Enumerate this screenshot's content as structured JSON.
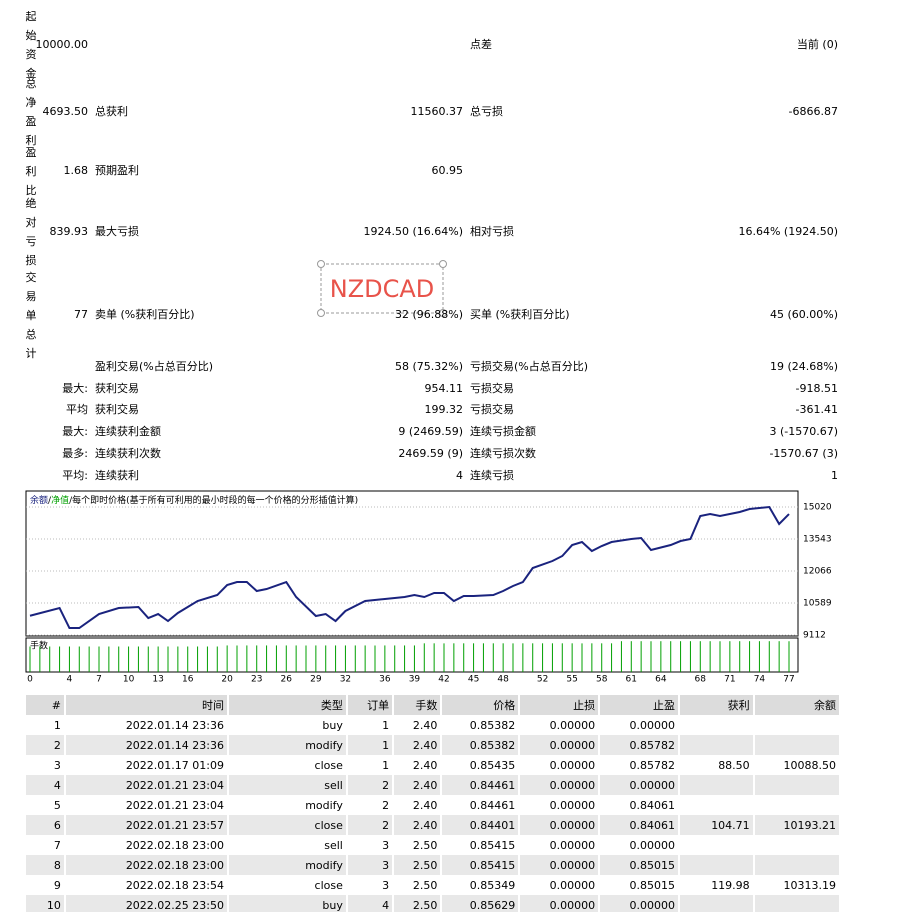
{
  "summary": {
    "rows": [
      {
        "head": "起始资金",
        "v1": "10000.00",
        "l3": "点差",
        "v3": "当前 (0)"
      },
      {
        "head": "总净盈利",
        "v1": "4693.50",
        "l2": "总获利",
        "v2": "11560.37",
        "l3": "总亏损",
        "v3": "-6866.87"
      },
      {
        "head": "盈利比",
        "v1": "1.68",
        "l2": "预期盈利",
        "v2": "60.95"
      },
      {
        "head": "绝对亏损",
        "v1": "839.93",
        "l2": "最大亏损",
        "v2": "1924.50 (16.64%)",
        "l3": "相对亏损",
        "v3": "16.64% (1924.50)"
      },
      {
        "head": "交易单总计",
        "v1": "77",
        "l2": "卖单 (%获利百分比)",
        "v2": "32 (96.88%)",
        "l3": "买单 (%获利百分比)",
        "v3": "45 (60.00%)"
      },
      {
        "l2": "盈利交易(%占总百分比)",
        "v2": "58 (75.32%)",
        "l3": "亏损交易(%占总百分比)",
        "v3": "19 (24.68%)"
      },
      {
        "v1": "最大:",
        "l2": "获利交易",
        "v2": "954.11",
        "l3": "亏损交易",
        "v3": "-918.51"
      },
      {
        "v1": "平均",
        "l2": "获利交易",
        "v2": "199.32",
        "l3": "亏损交易",
        "v3": "-361.41"
      },
      {
        "v1": "最大:",
        "l2": "连续获利金额",
        "v2": "9 (2469.59)",
        "l3": "连续亏损金额",
        "v3": "3 (-1570.67)"
      },
      {
        "v1": "最多:",
        "l2": "连续获利次数",
        "v2": "2469.59 (9)",
        "l3": "连续亏损次数",
        "v3": "-1570.67 (3)"
      },
      {
        "v1": "平均:",
        "l2": "连续获利",
        "v2": "4",
        "l3": "连续亏损",
        "v3": "1"
      }
    ]
  },
  "watermark": "NZDCAD",
  "chart_data": {
    "type": "line",
    "legend_separator": "/",
    "legend_items": [
      {
        "text": "净值",
        "color": "#00a000"
      },
      {
        "text": "每个即时价格(基于所有可利用的最小时段的每一个价格的分形插值计算)",
        "color": "#000000"
      }
    ],
    "series": [
      {
        "name": "余额",
        "color": "#1a237e",
        "x": [
          0,
          3,
          4,
          5,
          7,
          9,
          11,
          12,
          13,
          14,
          15,
          17,
          19,
          20,
          21,
          22,
          23,
          24,
          26,
          27,
          29,
          30,
          31,
          32,
          34,
          36,
          38,
          39,
          40,
          41,
          42,
          43,
          44,
          45,
          47,
          48,
          49,
          50,
          51,
          53,
          54,
          55,
          56,
          57,
          58,
          59,
          61,
          62,
          63,
          65,
          66,
          67,
          68,
          69,
          70,
          72,
          73,
          75,
          76,
          77
        ],
        "values": [
          10000,
          10358,
          9435,
          9435,
          10081,
          10358,
          10404,
          9897,
          10081,
          9758,
          10128,
          10681,
          10958,
          11420,
          11558,
          11558,
          11143,
          11235,
          11558,
          10866,
          9989,
          10081,
          9758,
          10220,
          10681,
          10774,
          10866,
          10958,
          10866,
          11051,
          11051,
          10681,
          10912,
          10912,
          10958,
          11143,
          11374,
          11558,
          12205,
          12528,
          12759,
          13266,
          13405,
          12990,
          13220,
          13405,
          13543,
          13589,
          13035,
          13266,
          13451,
          13543,
          14605,
          14697,
          14605,
          14790,
          14928,
          15020,
          14236,
          14693.5
        ]
      }
    ],
    "xlim": [
      0,
      77
    ],
    "xticks": [
      0,
      4,
      7,
      10,
      13,
      16,
      20,
      23,
      26,
      29,
      32,
      36,
      39,
      42,
      45,
      48,
      52,
      55,
      58,
      61,
      64,
      68,
      71,
      74,
      77
    ],
    "ylim": [
      9066,
      15760
    ],
    "yticks": [
      9112,
      10589,
      12066,
      13543,
      15020
    ],
    "grid": true,
    "volume": {
      "title": "手数",
      "color": "#00a000",
      "ylim": [
        0,
        3.2
      ],
      "values": [
        2.4,
        2.4,
        2.4,
        2.4,
        2.4,
        2.4,
        2.4,
        2.4,
        2.4,
        2.4,
        2.4,
        2.4,
        2.4,
        2.4,
        2.4,
        2.4,
        2.4,
        2.4,
        2.4,
        2.4,
        2.5,
        2.5,
        2.5,
        2.5,
        2.5,
        2.5,
        2.5,
        2.5,
        2.5,
        2.5,
        2.5,
        2.5,
        2.5,
        2.5,
        2.5,
        2.5,
        2.5,
        2.5,
        2.5,
        2.5,
        2.7,
        2.7,
        2.7,
        2.7,
        2.7,
        2.7,
        2.7,
        2.7,
        2.7,
        2.7,
        2.7,
        2.7,
        2.7,
        2.7,
        2.7,
        2.7,
        2.7,
        2.7,
        2.7,
        2.7,
        2.9,
        2.9,
        2.9,
        2.9,
        2.9,
        2.9,
        2.9,
        2.9,
        2.9,
        2.9,
        2.9,
        2.9,
        2.9,
        2.9,
        2.9,
        2.9,
        2.9,
        2.9
      ]
    }
  },
  "table": {
    "header": [
      "#",
      "时间",
      "类型",
      "订单",
      "手数",
      "价格",
      "止损",
      "止盈",
      "获利",
      "余额"
    ],
    "rows": [
      [
        "1",
        "2022.01.14 23:36",
        "buy",
        "1",
        "2.40",
        "0.85382",
        "0.00000",
        "0.00000"
      ],
      [
        "2",
        "2022.01.14 23:36",
        "modify",
        "1",
        "2.40",
        "0.85382",
        "0.00000",
        "0.85782"
      ],
      [
        "3",
        "2022.01.17 01:09",
        "close",
        "1",
        "2.40",
        "0.85435",
        "0.00000",
        "0.85782",
        "88.50",
        "10088.50"
      ],
      [
        "4",
        "2022.01.21 23:04",
        "sell",
        "2",
        "2.40",
        "0.84461",
        "0.00000",
        "0.00000"
      ],
      [
        "5",
        "2022.01.21 23:04",
        "modify",
        "2",
        "2.40",
        "0.84461",
        "0.00000",
        "0.84061"
      ],
      [
        "6",
        "2022.01.21 23:57",
        "close",
        "2",
        "2.40",
        "0.84401",
        "0.00000",
        "0.84061",
        "104.71",
        "10193.21"
      ],
      [
        "7",
        "2022.02.18 23:00",
        "sell",
        "3",
        "2.50",
        "0.85415",
        "0.00000",
        "0.00000"
      ],
      [
        "8",
        "2022.02.18 23:00",
        "modify",
        "3",
        "2.50",
        "0.85415",
        "0.00000",
        "0.85015"
      ],
      [
        "9",
        "2022.02.18 23:54",
        "close",
        "3",
        "2.50",
        "0.85349",
        "0.00000",
        "0.85015",
        "119.98",
        "10313.19"
      ],
      [
        "10",
        "2022.02.25 23:50",
        "buy",
        "4",
        "2.50",
        "0.85629",
        "0.00000",
        "0.00000"
      ]
    ]
  }
}
